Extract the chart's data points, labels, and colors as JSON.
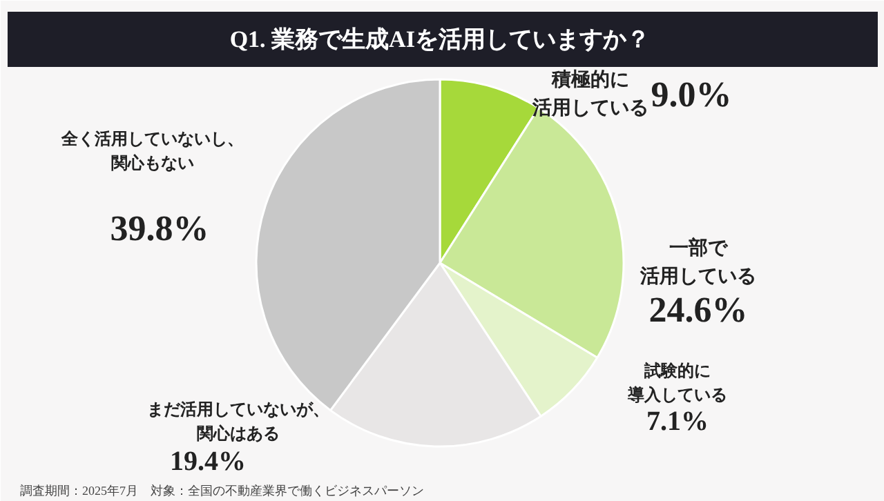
{
  "chart_data": {
    "type": "pie",
    "title": "Q1.  業務で生成AIを活用していますか？",
    "categories": [
      "積極的に活用している",
      "一部で活用している",
      "試験的に導入している",
      "まだ活用していないが、関心はある",
      "全く活用していないし、関心もない"
    ],
    "values": [
      9.0,
      24.6,
      7.1,
      19.4,
      39.8
    ],
    "colors": [
      "#a6d93a",
      "#c9e897",
      "#e4f3cb",
      "#e8e6e6",
      "#c8c8c8"
    ],
    "value_labels": [
      "9.0%",
      "24.6%",
      "7.1%",
      "19.4%",
      "39.8%"
    ],
    "annotations": [
      "調査期間：2025年7月　対象：全国の不動産業界で働くビジネスパーソン"
    ]
  }
}
